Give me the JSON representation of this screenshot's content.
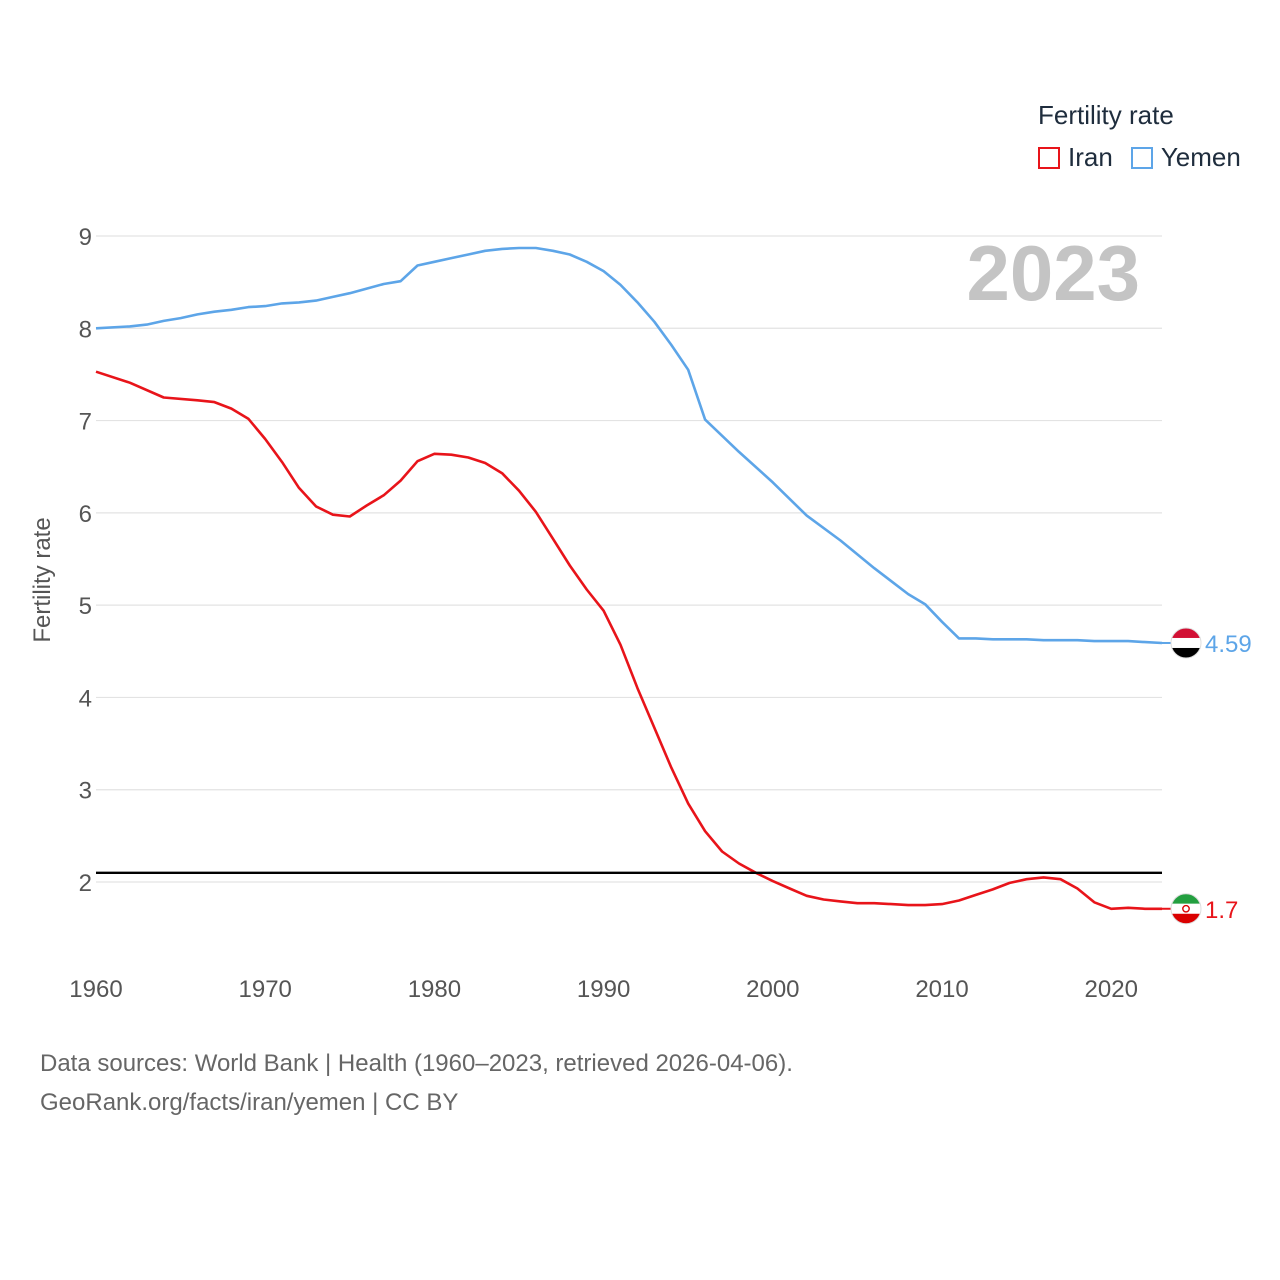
{
  "legend": {
    "title": "Fertility rate"
  },
  "year_label": "2023",
  "footer": {
    "line1": "Data sources: World Bank | Health (1960–2023, retrieved 2026-04-06).",
    "line2": "GeoRank.org/facts/iran/yemen | CC BY"
  },
  "chart_data": {
    "type": "line",
    "title": "",
    "xlabel": "",
    "ylabel": "Fertility rate",
    "xlim": [
      1960,
      2023
    ],
    "ylim": [
      1,
      9
    ],
    "x_ticks": [
      1960,
      1970,
      1980,
      1990,
      2000,
      2010,
      2020
    ],
    "y_ticks": [
      2,
      3,
      4,
      5,
      6,
      7,
      8,
      9
    ],
    "reference_line": {
      "y": 2.1
    },
    "series": [
      {
        "name": "Iran",
        "color": "#e8141a",
        "end_label": "1.7",
        "x": [
          1960,
          1962,
          1964,
          1966,
          1967,
          1968,
          1969,
          1970,
          1971,
          1972,
          1973,
          1974,
          1975,
          1976,
          1977,
          1978,
          1979,
          1980,
          1981,
          1982,
          1983,
          1984,
          1985,
          1986,
          1987,
          1988,
          1989,
          1990,
          1991,
          1992,
          1993,
          1994,
          1995,
          1996,
          1997,
          1998,
          1999,
          2000,
          2001,
          2002,
          2003,
          2004,
          2005,
          2006,
          2007,
          2008,
          2009,
          2010,
          2011,
          2012,
          2013,
          2014,
          2015,
          2016,
          2017,
          2018,
          2019,
          2020,
          2021,
          2022,
          2023
        ],
        "values": [
          7.53,
          7.41,
          7.25,
          7.22,
          7.2,
          7.13,
          7.02,
          6.8,
          6.55,
          6.27,
          6.07,
          5.98,
          5.96,
          6.08,
          6.19,
          6.35,
          6.56,
          6.64,
          6.63,
          6.6,
          6.54,
          6.43,
          6.24,
          6.01,
          5.72,
          5.43,
          5.17,
          4.94,
          4.57,
          4.1,
          3.67,
          3.24,
          2.85,
          2.55,
          2.33,
          2.2,
          2.1,
          2.01,
          1.93,
          1.85,
          1.81,
          1.79,
          1.77,
          1.77,
          1.76,
          1.75,
          1.75,
          1.76,
          1.8,
          1.86,
          1.92,
          1.99,
          2.03,
          2.05,
          2.03,
          1.93,
          1.78,
          1.71,
          1.72,
          1.71,
          1.71
        ]
      },
      {
        "name": "Yemen",
        "color": "#5da5e8",
        "end_label": "4.59",
        "x": [
          1960,
          1962,
          1963,
          1964,
          1965,
          1966,
          1967,
          1968,
          1969,
          1970,
          1971,
          1972,
          1973,
          1974,
          1975,
          1976,
          1977,
          1978,
          1979,
          1980,
          1981,
          1982,
          1983,
          1984,
          1985,
          1986,
          1987,
          1988,
          1989,
          1990,
          1991,
          1992,
          1993,
          1994,
          1995,
          1996,
          1998,
          2000,
          2002,
          2004,
          2006,
          2008,
          2009,
          2010,
          2011,
          2012,
          2013,
          2015,
          2016,
          2018,
          2019,
          2021,
          2022,
          2023
        ],
        "values": [
          8.0,
          8.02,
          8.04,
          8.08,
          8.11,
          8.15,
          8.18,
          8.2,
          8.23,
          8.24,
          8.27,
          8.28,
          8.3,
          8.34,
          8.38,
          8.43,
          8.48,
          8.51,
          8.68,
          8.72,
          8.76,
          8.8,
          8.84,
          8.86,
          8.87,
          8.87,
          8.84,
          8.8,
          8.72,
          8.62,
          8.47,
          8.28,
          8.07,
          7.82,
          7.55,
          7.01,
          6.66,
          6.33,
          5.97,
          5.7,
          5.4,
          5.12,
          5.01,
          4.82,
          4.64,
          4.64,
          4.63,
          4.63,
          4.62,
          4.62,
          4.61,
          4.61,
          4.6,
          4.59
        ]
      }
    ]
  }
}
